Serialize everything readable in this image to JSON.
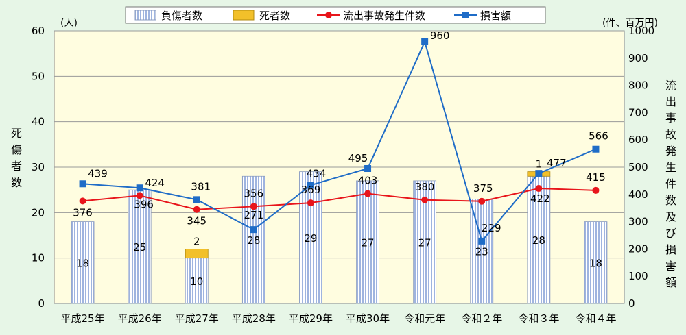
{
  "chart_data": {
    "type": "bar",
    "categories": [
      "平成25年",
      "平成26年",
      "平成27年",
      "平成28年",
      "平成29年",
      "平成30年",
      "令和元年",
      "令和２年",
      "令和３年",
      "令和４年"
    ],
    "left_axis": {
      "label": "死傷者数",
      "unit": "(人)",
      "ylim": [
        0,
        60
      ],
      "ticks": [
        "0",
        "10",
        "20",
        "30",
        "40",
        "50",
        "60"
      ]
    },
    "right_axis": {
      "label": "流出事故発生件数及び損害額",
      "unit": "(件、百万円)",
      "ylim": [
        0,
        1000
      ],
      "ticks": [
        "0",
        "100",
        "200",
        "300",
        "400",
        "500",
        "600",
        "700",
        "800",
        "900",
        "1000"
      ]
    },
    "series": [
      {
        "name": "負傷者数",
        "type": "bar",
        "axis": "left",
        "color": "#a9bde3",
        "values": [
          18,
          25,
          10,
          28,
          29,
          27,
          27,
          23,
          28,
          18
        ],
        "labels": [
          "18",
          "25",
          "10",
          "28",
          "29",
          "27",
          "27",
          "23",
          "28",
          "18"
        ]
      },
      {
        "name": "死者数",
        "type": "bar-stack",
        "axis": "left",
        "color": "#f2c02a",
        "values": [
          0,
          0,
          2,
          0,
          0,
          0,
          0,
          0,
          1,
          0
        ],
        "labels": [
          "",
          "",
          "2",
          "",
          "",
          "",
          "",
          "",
          "1",
          ""
        ]
      },
      {
        "name": "流出事故発生件数",
        "type": "line",
        "axis": "right",
        "color": "#e8151b",
        "marker": "circle",
        "values": [
          376,
          396,
          345,
          356,
          369,
          403,
          380,
          375,
          422,
          415
        ],
        "labels": [
          "376",
          "396",
          "345",
          "356",
          "369",
          "403",
          "380",
          "375",
          "422",
          "415"
        ]
      },
      {
        "name": "損害額",
        "type": "line",
        "axis": "right",
        "color": "#1f6cc7",
        "marker": "square",
        "values": [
          439,
          424,
          381,
          271,
          434,
          495,
          960,
          229,
          477,
          566
        ],
        "labels": [
          "439",
          "424",
          "381",
          "271",
          "434",
          "495",
          "960",
          "229",
          "477",
          "566"
        ]
      }
    ],
    "legend_position": "top",
    "grid": true
  }
}
